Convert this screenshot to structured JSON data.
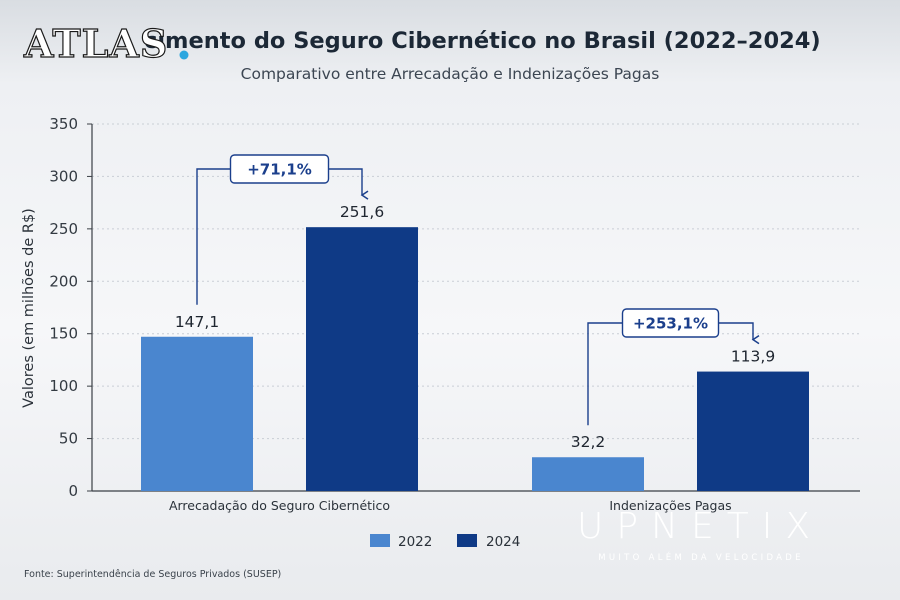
{
  "watermark": {
    "logo_text": "ATLAS",
    "brand_name": "UPNETIX",
    "brand_tagline": "MUITO ALÉM DA VELOCIDADE"
  },
  "colors": {
    "series_2022": "#4a86cf",
    "series_2024": "#0f3a86",
    "annotation": "#1b3f8c",
    "logo_dot": "#2aa6df"
  },
  "chart_data": {
    "type": "bar",
    "title": "Crescimento do Seguro Cibernético no Brasil (2022–2024)",
    "title_visible": "cimento do Seguro Cibernético no Brasil (2022–2024)",
    "subtitle": "Comparativo entre Arrecadação e Indenizações Pagas",
    "xlabel": "",
    "ylabel": "Valores (em milhões de R$)",
    "ylim": [
      0,
      350
    ],
    "yticks": [
      0,
      50,
      100,
      150,
      200,
      250,
      300,
      350
    ],
    "grid": true,
    "categories": [
      "Arrecadação do Seguro Cibernético",
      "Indenizações Pagas"
    ],
    "series": [
      {
        "name": "2022",
        "values": [
          147.1,
          32.2
        ],
        "labels": [
          "147,1",
          "32,2"
        ]
      },
      {
        "name": "2024",
        "values": [
          251.6,
          113.9
        ],
        "labels": [
          "251,6",
          "113,9"
        ]
      }
    ],
    "annotations": [
      "+71,1%",
      "+253,1%"
    ],
    "legend_position": "bottom-center",
    "source": "Fonte: Superintendência de Seguros Privados (SUSEP)"
  }
}
